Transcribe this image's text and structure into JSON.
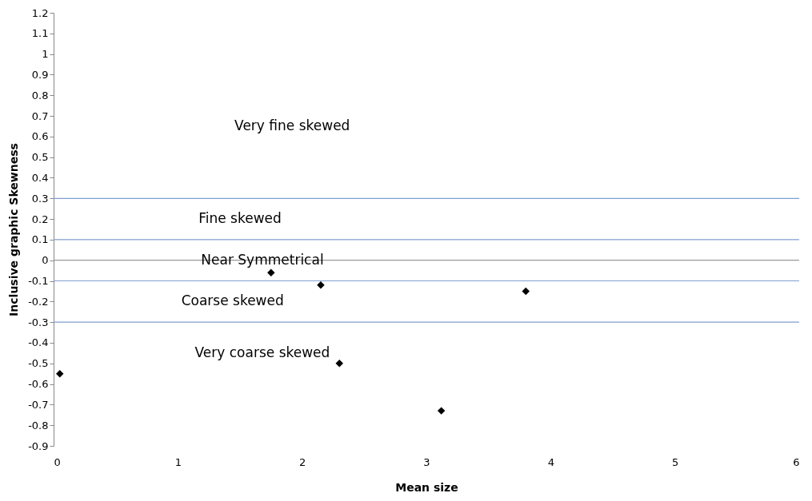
{
  "chart_data": {
    "type": "scatter",
    "xlabel": "Mean size",
    "ylabel": "Inclusive graphic Skewness",
    "x": [
      0.05,
      1.75,
      2.15,
      2.3,
      3.12,
      3.8
    ],
    "series": [
      {
        "color": "#000000",
        "values": [
          -0.55,
          -0.06,
          -0.12,
          -0.5,
          -0.73,
          -0.15
        ]
      }
    ],
    "marker": "diamond",
    "grid": false,
    "legend": false,
    "xlim": [
      0,
      6
    ],
    "xticks": [
      0,
      1,
      2,
      3,
      4,
      5,
      6
    ],
    "ylim": [
      -0.9,
      1.2
    ],
    "yticks": [
      -0.9,
      -0.8,
      -0.7,
      -0.6,
      -0.5,
      -0.4,
      -0.3,
      -0.2,
      -0.1,
      0,
      0.1,
      0.2,
      0.3,
      0.4,
      0.5,
      0.6,
      0.7,
      0.8,
      0.9,
      1,
      1.1,
      1.2
    ],
    "ref_lines": [
      {
        "axis": "y",
        "value": 0.3,
        "color": "#7f9fd0"
      },
      {
        "axis": "y",
        "value": 0.1,
        "color": "#7f9fd0"
      },
      {
        "axis": "y",
        "value": 0,
        "color": "#999999"
      },
      {
        "axis": "y",
        "value": -0.1,
        "color": "#7f9fd0"
      },
      {
        "axis": "y",
        "value": -0.3,
        "color": "#7f9fd0"
      }
    ],
    "annotations": [
      "Very fine skewed",
      "Fine skewed",
      "Near Symmetrical",
      "Coarse skewed",
      "Very coarse skewed"
    ]
  }
}
